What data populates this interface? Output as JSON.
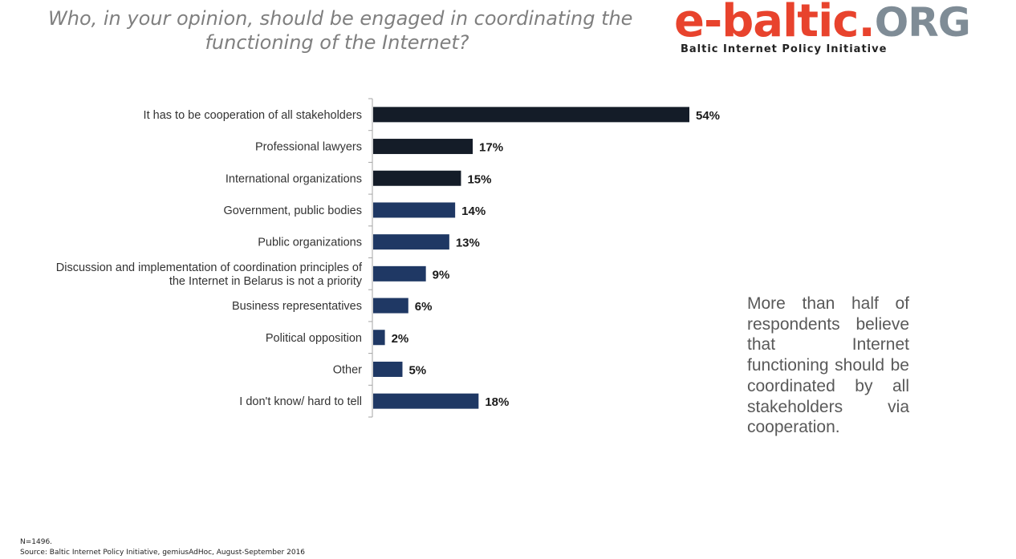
{
  "header": {
    "title_line1": "Who, in your opinion, should be engaged in coordinating the",
    "title_line2": "functioning of the Internet?"
  },
  "logo": {
    "part1": "e-baltic.",
    "part2": "ORG",
    "tagline": "Baltic Internet Policy Initiative",
    "colors": {
      "red": "#e8432d",
      "grey": "#7f8c96"
    }
  },
  "chart_data": {
    "type": "bar",
    "orientation": "horizontal",
    "categories": [
      "It has to be cooperation of all stakeholders",
      "Professional lawyers",
      "International organizations",
      "Government, public bodies",
      "Public organizations",
      "Discussion and implementation of coordination principles of the Internet in Belarus is not a priority",
      "Business representatives",
      "Political opposition",
      "Other",
      "I don't know/ hard to tell"
    ],
    "category_lines": [
      [
        "It has to be cooperation of all stakeholders"
      ],
      [
        "Professional lawyers"
      ],
      [
        "International organizations"
      ],
      [
        "Government, public bodies"
      ],
      [
        "Public organizations"
      ],
      [
        "Discussion and implementation of coordination principles of",
        "the Internet in Belarus is not a priority"
      ],
      [
        "Business representatives"
      ],
      [
        "Political opposition"
      ],
      [
        "Other"
      ],
      [
        "I don't know/ hard to tell"
      ]
    ],
    "values": [
      54,
      17,
      15,
      14,
      13,
      9,
      6,
      2,
      5,
      18
    ],
    "value_labels": [
      "54%",
      "17%",
      "15%",
      "14%",
      "13%",
      "9%",
      "6%",
      "2%",
      "5%",
      "18%"
    ],
    "bar_colors": [
      "#141c28",
      "#141c28",
      "#141c28",
      "#1f3864",
      "#1f3864",
      "#1f3864",
      "#1f3864",
      "#1f3864",
      "#1f3864",
      "#1f3864"
    ],
    "xlim": [
      0,
      54
    ],
    "grid": false,
    "legend": "none"
  },
  "note": {
    "text": "More than half of respondents believe that Internet functioning should be coordinated by all stakeholders via cooperation."
  },
  "footer": {
    "n": "N=1496.",
    "source": "Source: Baltic Internet Policy Initiative,  gemiusAdHoc, August-September 2016"
  }
}
